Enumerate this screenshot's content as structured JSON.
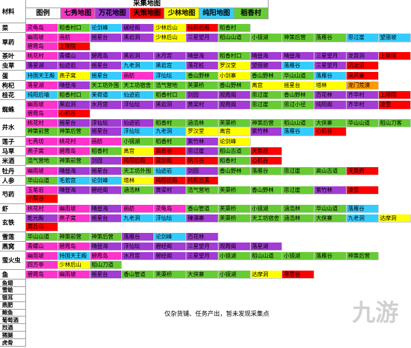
{
  "header": {
    "corner": "材料",
    "title": "采集地图",
    "legend": [
      {
        "text": "图例",
        "color": "#ffffff"
      },
      {
        "text": "七秀地图",
        "color": "#ff33cc"
      },
      {
        "text": "万花地图",
        "color": "#a33bd6"
      },
      {
        "text": "天策地图",
        "color": "#ff0000"
      },
      {
        "text": "少林地图",
        "color": "#ffff00"
      },
      {
        "text": "纯阳地图",
        "color": "#33ccff"
      },
      {
        "text": "稻香村",
        "color": "#66cc33"
      }
    ]
  },
  "table": {
    "rows": [
      {
        "material": "菜",
        "lines": [
          [
            [
              "灵龟岛",
              "#ff33cc"
            ],
            [
              "稻香村口",
              "#66cc33"
            ],
            [
              "论剑峰",
              "#33ccff"
            ],
            [
              "碾经阁",
              "#a33bd6"
            ],
            [
              "少林后山",
              "#ffff00"
            ],
            [
              "纯阳后殿",
              "#ff0000"
            ],
            [
              "稻香村",
              "#66cc33"
            ]
          ]
        ]
      },
      {
        "material": "草药",
        "lines": [
          [
            [
              "幽雨坡",
              "#ff33cc"
            ],
            [
              "画舫",
              "#ff33cc"
            ],
            [
              "摇星台",
              "#a33bd6"
            ],
            [
              "黑岩洞",
              "#a33bd6"
            ],
            [
              "少林后山",
              "#ffff00"
            ],
            [
              "三星望月",
              "#a33bd6"
            ],
            [
              "稻山山道",
              "#66cc33"
            ],
            [
              "小镜湖",
              "#66cc33"
            ],
            [
              "神策后营",
              "#66cc33"
            ],
            [
              "落雁谷",
              "#66cc33"
            ],
            [
              "思过崖",
              "#33ccff"
            ],
            [
              "望丽坡",
              "#33ccff"
            ]
          ],
          [
            [
              "碧霞岛",
              "#ff33cc"
            ],
            [
              "上陵院",
              "#ff0000"
            ]
          ]
        ]
      },
      {
        "material": "茶叶",
        "lines": [
          [
            [
              "桃花村",
              "#ff33cc"
            ],
            [
              "青螺山",
              "#a33bd6"
            ],
            [
              "碧霞岛",
              "#a33bd6"
            ],
            [
              "黑岩洞",
              "#a33bd6"
            ],
            [
              "水月宫",
              "#a33bd6"
            ],
            [
              "晴昼海",
              "#a33bd6"
            ],
            [
              "稻香村口",
              "#66cc33"
            ],
            [
              "晴昼海",
              "#a33bd6"
            ],
            [
              "晴昼海",
              "#a33bd6"
            ],
            [
              "三星望月",
              "#a33bd6"
            ],
            [
              "龙首洞",
              "#a33bd6"
            ],
            [
              "上陵院",
              "#ff0000"
            ]
          ]
        ]
      },
      {
        "material": "虫草",
        "lines": [
          [
            [
              "落星湖",
              "#a33bd6"
            ],
            [
              "仙迹岩",
              "#a33bd6"
            ],
            [
              "摇星台",
              "#a33bd6"
            ],
            [
              "九老洞",
              "#33ccff"
            ],
            [
              "黑岩宫",
              "#33ccff"
            ],
            [
              "落花桩",
              "#a33bd6"
            ],
            [
              "罗汉堂",
              "#ffff00"
            ],
            [
              "望丽坡",
              "#a33bd6"
            ],
            [
              "落雁谷",
              "#33ccff"
            ],
            [
              "三星望月",
              "#a33bd6"
            ],
            [
              "沉龙沼",
              "#ff0000"
            ]
          ]
        ]
      },
      {
        "material": "蛋",
        "lines": [
          [
            [
              "持国天王殿",
              "#33ccff"
            ],
            [
              "燕子窝",
              "#ffff00"
            ],
            [
              "摇星台",
              "#33ccff"
            ],
            [
              "画舫",
              "#ff33cc"
            ],
            [
              "浮仙坛",
              "#33ccff"
            ],
            [
              "香山野林",
              "#66cc33"
            ],
            [
              "小剑寨",
              "#ffff00"
            ],
            [
              "香山野林",
              "#66cc33"
            ],
            [
              "华山山道",
              "#66cc33"
            ],
            [
              "落雁谷",
              "#33ccff"
            ],
            [
              "黑风寨",
              "#ff0000"
            ]
          ]
        ]
      },
      {
        "material": "枸杞",
        "lines": [
          [
            [
              "落星湖",
              "#ff33cc"
            ],
            [
              "晴昼海",
              "#a33bd6"
            ],
            [
              "天工坊外围",
              "#66cc33"
            ],
            [
              "天工坊宿舍",
              "#66cc33"
            ],
            [
              "浩气营地",
              "#66cc33"
            ],
            [
              "芙蕖桥",
              "#66cc33"
            ],
            [
              "香山野林",
              "#66cc33"
            ],
            [
              "离宫",
              "#ffff00"
            ],
            [
              "摇星台",
              "#ffff00"
            ],
            [
              "塔林",
              "#ffff00"
            ],
            [
              "龙门荒漠",
              "#ff9900"
            ]
          ]
        ]
      },
      {
        "material": "桂花",
        "lines": [
          [
            [
              "纯阳后墙",
              "#33ccff"
            ],
            [
              "稻香村口",
              "#66cc33"
            ],
            [
              "茉荷道",
              "#33ccff"
            ],
            [
              "仙迹岩",
              "#33ccff"
            ],
            [
              "稻香村口",
              "#66cc33"
            ],
            [
              "剑园",
              "#a33bd6"
            ],
            [
              "观霞阁",
              "#a33bd6"
            ],
            [
              "思过崖",
              "#66cc33"
            ],
            [
              "香山野林",
              "#66cc33"
            ],
            [
              "百花林",
              "#a33bd6"
            ],
            [
              "齐华村",
              "#a33bd6"
            ],
            [
              "上陵院",
              "#ff0000"
            ]
          ]
        ]
      },
      {
        "material": "蜘蛛",
        "lines": [
          [
            [
              "幽雨坡",
              "#ff33cc"
            ],
            [
              "黑岩洞",
              "#a33bd6"
            ],
            [
              "水月宫",
              "#a33bd6"
            ],
            [
              "浮仙坛",
              "#a33bd6"
            ],
            [
              "黑岩洞",
              "#a33bd6"
            ],
            [
              "黄梁村",
              "#a33bd6"
            ],
            [
              "观霞阁",
              "#a33bd6"
            ],
            [
              "思过崖",
              "#66cc33"
            ],
            [
              "思过小径",
              "#66cc33"
            ],
            [
              "纯阳阁",
              "#a33bd6"
            ],
            [
              "齐华村",
              "#a33bd6"
            ],
            [
              "凌雪",
              "#ff0000"
            ]
          ],
          [
            [
              "碧霞岛",
              "#ff33cc"
            ],
            [
              "心机谷",
              "#ff0000"
            ]
          ]
        ]
      },
      {
        "material": "井水",
        "lines": [
          [
            [
              "桃花村",
              "#ff33cc"
            ],
            [
              "摇星台",
              "#a33bd6"
            ],
            [
              "浮仙坛",
              "#a33bd6"
            ],
            [
              "仙迹岩",
              "#a33bd6"
            ],
            [
              "稻香村",
              "#66cc33"
            ],
            [
              "涵浩林",
              "#66cc33"
            ],
            [
              "芙蕖桥",
              "#66cc33"
            ],
            [
              "神策后营",
              "#66cc33"
            ],
            [
              "稻山山道",
              "#66cc33"
            ],
            [
              "大侠寨",
              "#66cc33"
            ],
            [
              "华山山道",
              "#66cc33"
            ],
            [
              "稻山刀客",
              "#66cc33"
            ]
          ],
          [
            [
              "神策前营",
              "#66cc33"
            ],
            [
              "神策后营",
              "#66cc33"
            ],
            [
              "摇星台",
              "#a33bd6"
            ],
            [
              "浮仙坛",
              "#33ccff"
            ],
            [
              "九老洞",
              "#33ccff"
            ],
            [
              "罗汉堂",
              "#ffff00"
            ],
            [
              "离宫",
              "#ffff00"
            ],
            [
              "紫竹林",
              "#a33bd6"
            ],
            [
              "落雁谷",
              "#33ccff"
            ],
            [
              "心机谷",
              "#ff0000"
            ]
          ]
        ]
      },
      {
        "material": "莲子",
        "lines": [
          [
            [
              "七秀坊",
              "#ff33cc"
            ],
            [
              "桃花村",
              "#ff33cc"
            ],
            [
              "画舫",
              "#ff33cc"
            ],
            [
              "小镜湖",
              "#66cc33"
            ],
            [
              "稻香村",
              "#66cc33"
            ],
            [
              "紫竹林",
              "#a33bd6"
            ],
            [
              "论剑峰",
              "#ffff00"
            ]
          ]
        ]
      },
      {
        "material": "马草",
        "lines": [
          [
            [
              "燕子窝",
              "#ff33cc"
            ],
            [
              "碧霞岛",
              "#ff33cc"
            ],
            [
              "稻香村",
              "#66cc33"
            ],
            [
              "离宫",
              "#ffff00"
            ],
            [
              "高奇谷",
              "#ff0000"
            ],
            [
              "思过崖",
              "#a33bd6"
            ],
            [
              "稻山古道",
              "#66cc33"
            ],
            [
              "天策府",
              "#ff0000"
            ]
          ]
        ]
      },
      {
        "material": "米酒",
        "lines": [
          [
            [
              "浩气营地",
              "#66cc33"
            ],
            [
              "神策前营",
              "#66cc33"
            ],
            [
              "剑园",
              "#a33bd6"
            ],
            [
              "纯阳后殿",
              "#ff0000"
            ],
            [
              "藏剑阁",
              "#ff0000"
            ],
            [
              "帆斗谷",
              "#ff0000"
            ],
            [
              "稻香村",
              "#66cc33"
            ],
            [
              "心机谷",
              "#ff0000"
            ]
          ]
        ]
      },
      {
        "material": "牡丹",
        "lines": [
          [
            [
              "幽雨坡",
              "#ff33cc"
            ],
            [
              "晴昼海",
              "#a33bd6"
            ],
            [
              "摇星台",
              "#a33bd6"
            ],
            [
              "天工坊外围",
              "#66cc33"
            ],
            [
              "仙迹岩",
              "#33ccff"
            ],
            [
              "剑园",
              "#a33bd6"
            ],
            [
              "香山野林",
              "#66cc33"
            ],
            [
              "落雁谷",
              "#66cc33"
            ],
            [
              "思过崖",
              "#66cc33"
            ],
            [
              "高山古道",
              "#66cc33"
            ],
            [
              "天策府",
              "#ff0000"
            ]
          ]
        ]
      },
      {
        "material": "人参",
        "lines": [
          [
            [
              "华山山道",
              "#66cc33"
            ],
            [
              "毛若宫",
              "#33ccff"
            ],
            [
              "论剑峰",
              "#33ccff"
            ],
            [
              "塔林",
              "#ffff00"
            ],
            [
              "纯阳后殿",
              "#ff0000"
            ],
            [
              "纯阳后素",
              "#ff0000"
            ]
          ]
        ]
      },
      {
        "material": "芍药",
        "lines": [
          [
            [
              "玉笔岩",
              "#ff33cc"
            ],
            [
              "晴昼海",
              "#a33bd6"
            ],
            [
              "碧经阁",
              "#a33bd6"
            ],
            [
              "涵浩林",
              "#66cc33"
            ],
            [
              "黄梁村",
              "#a33bd6"
            ],
            [
              "浩气营地",
              "#66cc33"
            ],
            [
              "芙蕖桥",
              "#66cc33"
            ],
            [
              "香山野林",
              "#66cc33"
            ],
            [
              "思过崖",
              "#66cc33"
            ],
            [
              "紫竹林",
              "#a33bd6"
            ],
            [
              "凌雪",
              "#ff0000"
            ]
          ],
          [
            [
              "小梨谷",
              "#ff0000"
            ]
          ]
        ]
      },
      {
        "material": "虾",
        "lines": [
          [
            [
              "桃花村",
              "#ff33cc"
            ],
            [
              "幽雨坡",
              "#ff33cc"
            ],
            [
              "晴昼海",
              "#a33bd6"
            ],
            [
              "画舫",
              "#ff33cc"
            ],
            [
              "灵龟岛",
              "#ff33cc"
            ],
            [
              "香山管道",
              "#66cc33"
            ],
            [
              "芙蕖桥",
              "#66cc33"
            ],
            [
              "小镜湖",
              "#66cc33"
            ],
            [
              "涵浩林",
              "#66cc33"
            ],
            [
              "华山山道",
              "#66cc33"
            ],
            [
              "落雁谷",
              "#33ccff"
            ]
          ]
        ]
      },
      {
        "material": "玄铁",
        "lines": [
          [
            [
              "乾元殿",
              "#a33bd6"
            ],
            [
              "燕子窝",
              "#ff33cc"
            ],
            [
              "摇星台",
              "#a33bd6"
            ],
            [
              "九老洞",
              "#33ccff"
            ],
            [
              "浮仙坛",
              "#33ccff"
            ],
            [
              "臻涌寨",
              "#a33bd6"
            ],
            [
              "芙蕖桥",
              "#66cc33"
            ],
            [
              "天工坊宿舍",
              "#66cc33"
            ],
            [
              "涵浩林",
              "#66cc33"
            ],
            [
              "大侠寨",
              "#66cc33"
            ],
            [
              "九老洞",
              "#33ccff"
            ],
            [
              "达摩洞",
              "#ffff00"
            ]
          ],
          [
            [
              "嵩丘山",
              "#ff0000"
            ]
          ]
        ]
      },
      {
        "material": "雪莲",
        "lines": [
          [
            [
              "华山山道",
              "#66cc33"
            ],
            [
              "神策前营",
              "#66cc33"
            ],
            [
              "神策后营",
              "#66cc33"
            ],
            [
              "落雁谷",
              "#a33bd6"
            ],
            [
              "论剑峰",
              "#33ccff"
            ],
            [
              "百花林",
              "#a33bd6"
            ]
          ]
        ]
      },
      {
        "material": "燕窝",
        "lines": [
          [
            [
              "青螺山",
              "#ff33cc"
            ],
            [
              "碧霞岛",
              "#ff33cc"
            ],
            [
              "晴昼海",
              "#a33bd6"
            ],
            [
              "浮仙坛",
              "#a33bd6"
            ],
            [
              "碧经阁",
              "#a33bd6"
            ],
            [
              "三星望月",
              "#a33bd6"
            ],
            [
              "观霞阁",
              "#a33bd6"
            ],
            [
              "落星湖",
              "#a33bd6"
            ]
          ]
        ]
      },
      {
        "material": "萤火虫",
        "lines": [
          [
            [
              "幽雨坡",
              "#ff33cc"
            ],
            [
              "持国天王殿",
              "#33ccff"
            ],
            [
              "碧霞岛",
              "#ff33cc"
            ],
            [
              "水月宫",
              "#a33bd6"
            ],
            [
              "碧经阁",
              "#a33bd6"
            ],
            [
              "三星望月",
              "#a33bd6"
            ],
            [
              "小镜湖",
              "#66cc33"
            ],
            [
              "稻山山道",
              "#66cc33"
            ],
            [
              "小镜湖",
              "#66cc33"
            ],
            [
              "落雁谷",
              "#66cc33"
            ],
            [
              "神策后营",
              "#66cc33"
            ]
          ],
          [
            [
              "四方亭",
              "#ff33cc"
            ],
            [
              "少林后山",
              "#ffff00"
            ],
            [
              "稻山刀道",
              "#66cc33"
            ]
          ]
        ]
      },
      {
        "material": "鱼",
        "lines": [
          [
            [
              "碧霞岛",
              "#ff33cc"
            ],
            [
              "幽雨坡",
              "#ff33cc"
            ],
            [
              "摇星台",
              "#a33bd6"
            ],
            [
              "香山管道",
              "#66cc33"
            ],
            [
              "芙蕖桥",
              "#66cc33"
            ],
            [
              "大侠寨",
              "#66cc33"
            ],
            [
              "小镜湖",
              "#66cc33"
            ],
            [
              "达摩洞",
              "#ffff00"
            ],
            [
              "寒雪谷",
              "#ff0000"
            ]
          ]
        ]
      }
    ],
    "unlisted": [
      "鱼翅",
      "雪蛤",
      "银耳",
      "燕肥",
      "鲍鱼",
      "葡萄酒",
      "烈酒",
      "猪腿",
      "虎骨"
    ],
    "unlisted_note": "仅杂货铺、任务产出，暂未发现采集点"
  },
  "watermark": "九游"
}
